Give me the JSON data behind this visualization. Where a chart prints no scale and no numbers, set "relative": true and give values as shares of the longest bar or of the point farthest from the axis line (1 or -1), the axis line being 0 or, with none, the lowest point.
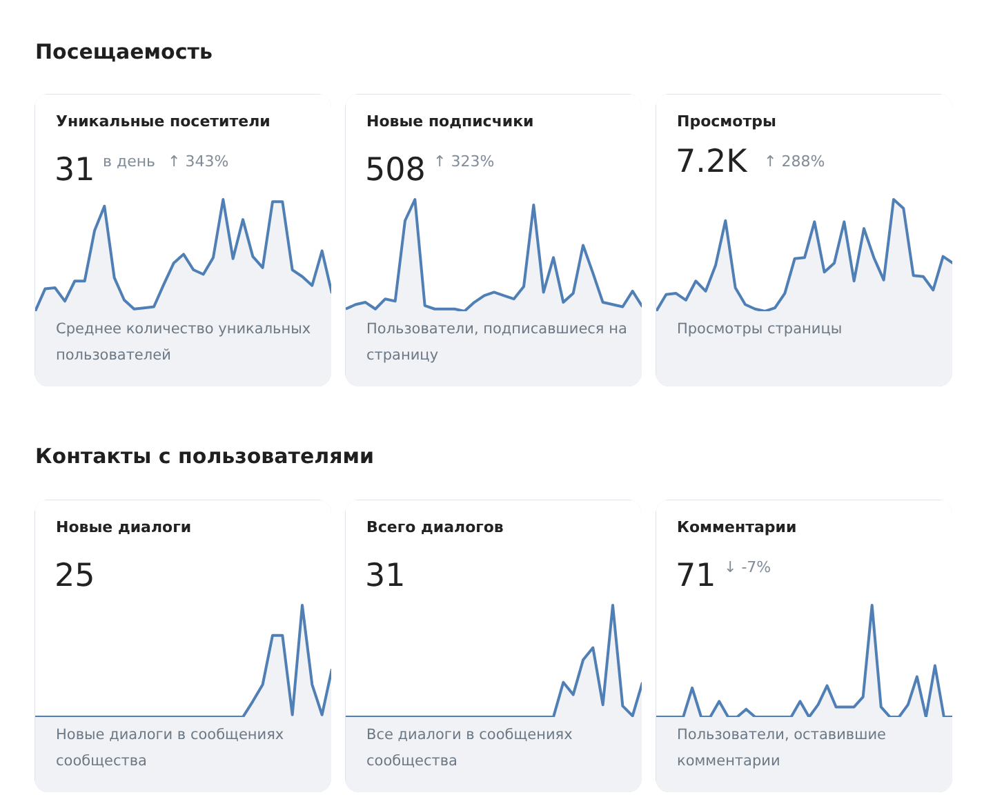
{
  "chart_data": [
    {
      "type": "other",
      "title": "Посещаемость"
    },
    {
      "type": "area",
      "relative": true,
      "title": "Уникальные посетители",
      "subtitle": "31",
      "color": "#4f7fb5",
      "annotations": [
        "в день",
        "↑ 343%",
        "Среднее количество уникальных пользователей"
      ],
      "categories": [
        null,
        null,
        null,
        null,
        null,
        null,
        null,
        null,
        null,
        null,
        null,
        null,
        null,
        null,
        null,
        null,
        null,
        null,
        null,
        null,
        null,
        null,
        null,
        null,
        null,
        null,
        null,
        null,
        null,
        null,
        null
      ],
      "values": [
        0,
        0.2,
        0.21,
        0.09,
        0.27,
        0.27,
        0.72,
        0.94,
        0.3,
        0.1,
        0.02,
        0.03,
        0.04,
        0.24,
        0.43,
        0.51,
        0.37,
        0.33,
        0.48,
        1.0,
        0.47,
        0.82,
        0.49,
        0.39,
        0.98,
        0.98,
        0.37,
        0.31,
        0.23,
        0.54,
        0.16
      ]
    },
    {
      "type": "area",
      "relative": true,
      "title": "Новые подписчики",
      "subtitle": "508",
      "color": "#4f7fb5",
      "annotations": [
        "↑ 323%",
        "Пользователи, подписавшиеся на страницу"
      ],
      "categories": [
        null,
        null,
        null,
        null,
        null,
        null,
        null,
        null,
        null,
        null,
        null,
        null,
        null,
        null,
        null,
        null,
        null,
        null,
        null,
        null,
        null,
        null,
        null,
        null,
        null,
        null,
        null,
        null,
        null,
        null,
        null
      ],
      "values": [
        0.02,
        0.06,
        0.08,
        0.02,
        0.11,
        0.09,
        0.81,
        1.0,
        0.05,
        0.02,
        0.02,
        0.02,
        0,
        0.08,
        0.14,
        0.17,
        0.14,
        0.11,
        0.22,
        0.95,
        0.17,
        0.48,
        0.08,
        0.16,
        0.59,
        0.34,
        0.08,
        0.06,
        0.04,
        0.18,
        0.04
      ]
    },
    {
      "type": "area",
      "relative": true,
      "title": "Просмотры",
      "subtitle": "7.2K",
      "color": "#4f7fb5",
      "annotations": [
        "↑ 288%",
        "Просмотры страницы"
      ],
      "categories": [
        null,
        null,
        null,
        null,
        null,
        null,
        null,
        null,
        null,
        null,
        null,
        null,
        null,
        null,
        null,
        null,
        null,
        null,
        null,
        null,
        null,
        null,
        null,
        null,
        null,
        null,
        null,
        null,
        null,
        null,
        null
      ],
      "values": [
        0,
        0.15,
        0.16,
        0.1,
        0.27,
        0.18,
        0.41,
        0.81,
        0.21,
        0.06,
        0.02,
        0,
        0.03,
        0.16,
        0.47,
        0.48,
        0.8,
        0.35,
        0.43,
        0.8,
        0.27,
        0.74,
        0.48,
        0.28,
        1.0,
        0.92,
        0.32,
        0.31,
        0.19,
        0.49,
        0.43
      ]
    },
    {
      "type": "other",
      "title": "Контакты с пользователями"
    },
    {
      "type": "area",
      "relative": true,
      "title": "Новые диалоги",
      "subtitle": "25",
      "color": "#4f7fb5",
      "annotations": [
        "Новые диалоги в сообщениях сообщества"
      ],
      "categories": [
        null,
        null,
        null,
        null,
        null,
        null,
        null,
        null,
        null,
        null,
        null,
        null,
        null,
        null,
        null,
        null,
        null,
        null,
        null,
        null,
        null,
        null,
        null,
        null,
        null,
        null,
        null,
        null,
        null,
        null,
        null
      ],
      "values": [
        0,
        0,
        0,
        0,
        0,
        0,
        0,
        0,
        0,
        0,
        0,
        0,
        0,
        0,
        0,
        0,
        0,
        0,
        0,
        0,
        0,
        0,
        0.14,
        0.29,
        0.73,
        0.73,
        0.02,
        1.0,
        0.29,
        0.02,
        0.43
      ]
    },
    {
      "type": "area",
      "relative": true,
      "title": "Всего диалогов",
      "subtitle": "31",
      "color": "#4f7fb5",
      "annotations": [
        "Все диалоги в сообщениях сообщества"
      ],
      "categories": [
        null,
        null,
        null,
        null,
        null,
        null,
        null,
        null,
        null,
        null,
        null,
        null,
        null,
        null,
        null,
        null,
        null,
        null,
        null,
        null,
        null,
        null,
        null,
        null,
        null,
        null,
        null,
        null,
        null,
        null,
        null
      ],
      "values": [
        0,
        0,
        0,
        0,
        0,
        0,
        0,
        0,
        0,
        0,
        0,
        0,
        0,
        0,
        0,
        0,
        0,
        0,
        0,
        0,
        0,
        0,
        0.31,
        0.2,
        0.51,
        0.62,
        0.11,
        1.0,
        0.1,
        0.01,
        0.31
      ]
    },
    {
      "type": "area",
      "relative": true,
      "title": "Комментарии",
      "subtitle": "71",
      "color": "#4f7fb5",
      "annotations": [
        "↓ -7%",
        "Пользователи, оставившие комментарии"
      ],
      "categories": [
        null,
        null,
        null,
        null,
        null,
        null,
        null,
        null,
        null,
        null,
        null,
        null,
        null,
        null,
        null,
        null,
        null,
        null,
        null,
        null,
        null,
        null,
        null,
        null,
        null,
        null,
        null,
        null,
        null,
        null,
        null,
        null,
        null,
        null
      ],
      "values": [
        0,
        0,
        0,
        0,
        0.26,
        0,
        0,
        0.14,
        0,
        0,
        0.07,
        0,
        0,
        0,
        0,
        0,
        0.14,
        0,
        0.11,
        0.28,
        0.09,
        0.09,
        0.09,
        0.18,
        1.0,
        0.09,
        0,
        0,
        0.11,
        0.36,
        0,
        0.46,
        0,
        0
      ]
    }
  ]
}
